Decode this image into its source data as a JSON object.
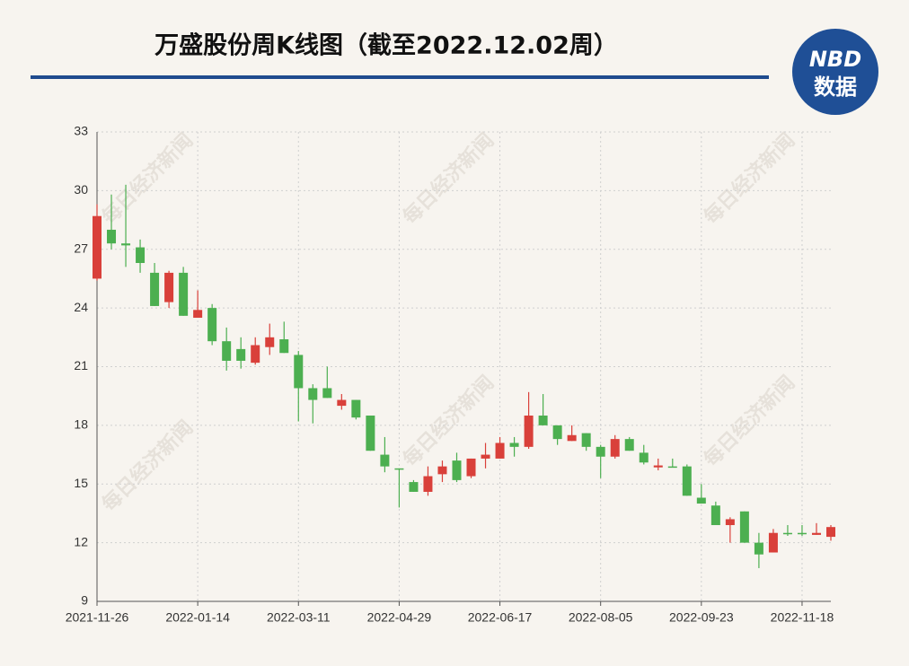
{
  "chart_data": {
    "type": "candlestick",
    "title": "万盛股份周K线图（截至2022.12.02周）",
    "categories": [
      "2021-11-26",
      null,
      null,
      null,
      null,
      null,
      null,
      "2022-01-14",
      null,
      null,
      null,
      null,
      null,
      null,
      "2022-03-11",
      null,
      null,
      null,
      null,
      null,
      null,
      "2022-04-29",
      null,
      null,
      null,
      null,
      null,
      null,
      "2022-06-17",
      null,
      null,
      null,
      null,
      null,
      null,
      "2022-08-05",
      null,
      null,
      null,
      null,
      null,
      null,
      "2022-09-23",
      null,
      null,
      null,
      null,
      null,
      null,
      "2022-11-18",
      null,
      null
    ],
    "open": [
      25.5,
      28.0,
      27.3,
      27.1,
      25.8,
      24.3,
      25.8,
      23.5,
      24.0,
      22.3,
      21.9,
      21.2,
      22.0,
      22.4,
      21.6,
      19.9,
      19.9,
      19.0,
      19.3,
      18.5,
      16.5,
      15.8,
      15.1,
      14.6,
      15.5,
      16.2,
      15.4,
      16.3,
      16.3,
      17.1,
      16.9,
      18.5,
      18.0,
      17.2,
      17.6,
      16.9,
      16.4,
      17.3,
      16.6,
      15.85,
      15.9,
      15.9,
      14.3,
      13.9,
      12.9,
      13.6,
      12.0,
      11.5,
      12.5,
      12.5,
      12.4,
      12.3
    ],
    "close": [
      28.7,
      27.3,
      27.2,
      26.3,
      24.1,
      25.8,
      23.6,
      23.9,
      22.3,
      21.3,
      21.3,
      22.1,
      22.5,
      21.7,
      19.9,
      19.3,
      19.4,
      19.3,
      18.4,
      16.7,
      15.9,
      15.75,
      14.6,
      15.4,
      15.9,
      15.2,
      16.3,
      16.5,
      17.1,
      16.9,
      18.5,
      18.0,
      17.3,
      17.5,
      16.9,
      16.4,
      17.3,
      16.7,
      16.1,
      15.95,
      15.85,
      14.4,
      14.0,
      12.9,
      13.2,
      12.0,
      11.4,
      12.5,
      12.45,
      12.45,
      12.5,
      12.8
    ],
    "high": [
      29.3,
      29.8,
      30.3,
      27.5,
      26.3,
      25.9,
      26.1,
      24.9,
      24.2,
      23.0,
      22.5,
      22.5,
      23.2,
      23.3,
      21.8,
      20.1,
      21.0,
      19.6,
      19.3,
      18.5,
      17.4,
      15.8,
      15.2,
      15.9,
      16.2,
      16.6,
      16.3,
      17.1,
      17.4,
      17.4,
      19.7,
      19.6,
      18.0,
      18.0,
      17.6,
      17.0,
      17.5,
      17.4,
      17.0,
      16.3,
      16.3,
      16.0,
      15.0,
      14.1,
      13.3,
      13.6,
      12.5,
      12.7,
      12.9,
      12.9,
      13.0,
      12.9
    ],
    "low": [
      25.4,
      27.0,
      26.1,
      25.8,
      24.1,
      24.0,
      23.6,
      23.5,
      22.1,
      20.8,
      20.9,
      21.1,
      21.6,
      21.7,
      18.2,
      18.1,
      19.4,
      18.8,
      18.3,
      16.7,
      15.6,
      13.8,
      14.6,
      14.4,
      15.1,
      15.1,
      15.3,
      15.8,
      16.3,
      16.4,
      16.8,
      18.0,
      17.0,
      17.2,
      16.7,
      15.3,
      16.3,
      16.7,
      16.0,
      15.7,
      15.85,
      14.4,
      14.0,
      12.9,
      12.0,
      12.0,
      10.7,
      11.5,
      12.35,
      12.35,
      12.4,
      12.1
    ],
    "up_color": "#d9403a",
    "down_color": "#4caf50",
    "ylim": [
      9,
      33
    ],
    "yticks": [
      9,
      12,
      15,
      18,
      21,
      24,
      27,
      30,
      33
    ],
    "grid": true
  },
  "logo": {
    "top": "NBD",
    "bottom": "数据"
  },
  "watermark": "每日经济新闻"
}
